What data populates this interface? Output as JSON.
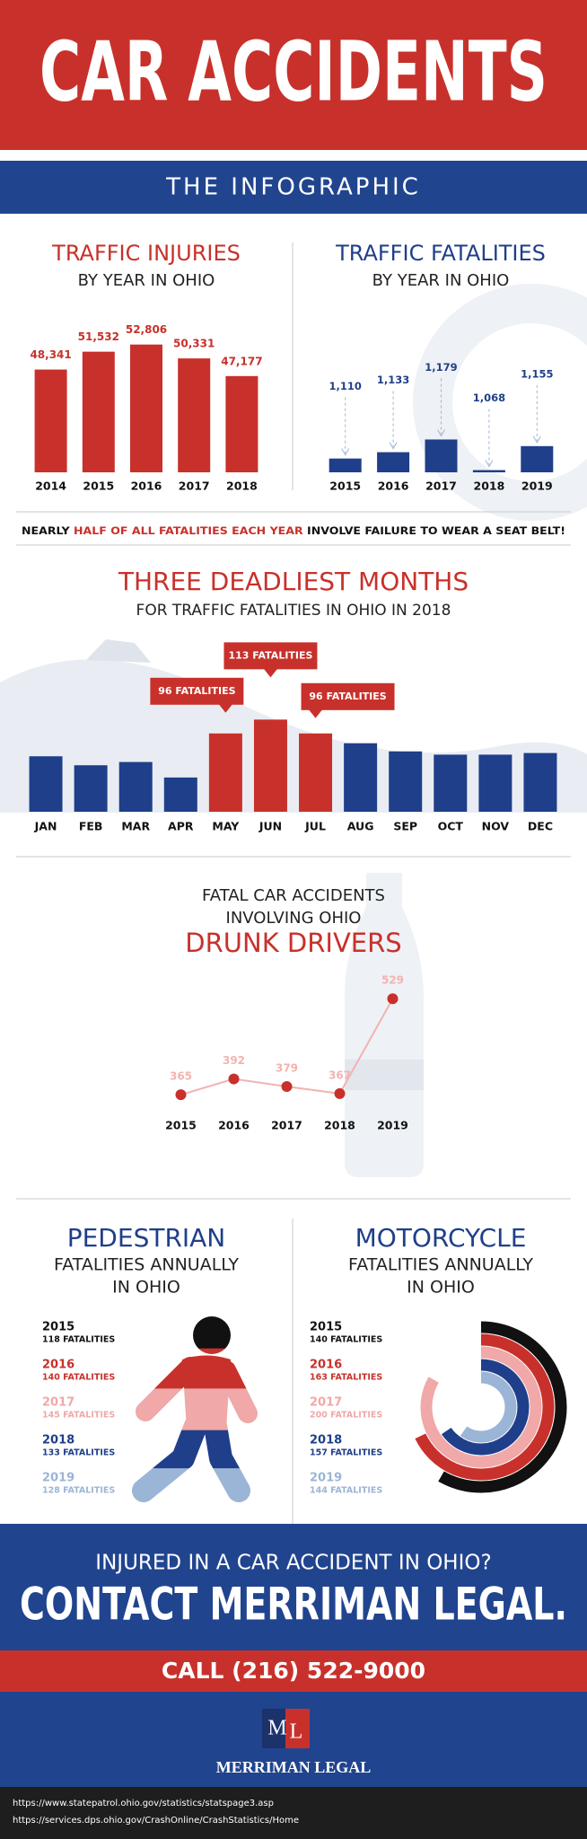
{
  "header": {
    "title": "CAR ACCIDENTS",
    "subtitle": "THE INFOGRAPHIC"
  },
  "chart_data": [
    {
      "type": "bar",
      "title": "TRAFFIC INJURIES",
      "subtitle": "BY YEAR IN OHIO",
      "categories": [
        "2014",
        "2015",
        "2016",
        "2017",
        "2018"
      ],
      "values": [
        48341,
        51532,
        52806,
        50331,
        47177
      ],
      "value_labels": [
        "48,341",
        "51,532",
        "52,806",
        "50,331",
        "47,177"
      ],
      "color": "#c8312b",
      "ylim": [
        30000,
        55000
      ]
    },
    {
      "type": "bar",
      "title": "TRAFFIC FATALITIES",
      "subtitle": "BY YEAR IN OHIO",
      "categories": [
        "2015",
        "2016",
        "2017",
        "2018",
        "2019"
      ],
      "values": [
        1110,
        1133,
        1179,
        1068,
        1155
      ],
      "value_labels": [
        "1,110",
        "1,133",
        "1,179",
        "1,068",
        "1,155"
      ],
      "color": "#1f3f8a",
      "ylim": [
        1060,
        1200
      ]
    },
    {
      "type": "bar",
      "title": "THREE DEADLIEST MONTHS",
      "subtitle": "FOR TRAFFIC FATALITIES IN OHIO IN 2018",
      "categories": [
        "JAN",
        "FEB",
        "MAR",
        "APR",
        "MAY",
        "JUN",
        "JUL",
        "AUG",
        "SEP",
        "OCT",
        "NOV",
        "DEC"
      ],
      "values": [
        68,
        57,
        61,
        42,
        96,
        113,
        96,
        84,
        74,
        70,
        70,
        72
      ],
      "value_labels": [
        null,
        null,
        null,
        null,
        "96 FATALITIES",
        "113 FATALITIES",
        "96 FATALITIES",
        null,
        null,
        null,
        null,
        null
      ],
      "colors": [
        "#1f3f8a",
        "#1f3f8a",
        "#1f3f8a",
        "#1f3f8a",
        "#c8312b",
        "#c8312b",
        "#c8312b",
        "#1f3f8a",
        "#1f3f8a",
        "#1f3f8a",
        "#1f3f8a",
        "#1f3f8a"
      ],
      "ylim": [
        0,
        120
      ]
    },
    {
      "type": "line",
      "title_lines": [
        "FATAL CAR ACCIDENTS",
        "INVOLVING OHIO"
      ],
      "title": "DRUNK DRIVERS",
      "categories": [
        "2015",
        "2016",
        "2017",
        "2018",
        "2019"
      ],
      "values": [
        365,
        392,
        379,
        367,
        529
      ],
      "color": "#c8312b",
      "line_color": "#f2b3b0",
      "ylim": [
        330,
        560
      ]
    },
    {
      "type": "figure",
      "title": "PEDESTRIAN",
      "subtitle_lines": [
        "FATALITIES ANNUALLY",
        "IN OHIO"
      ],
      "categories": [
        "2015",
        "2016",
        "2017",
        "2018",
        "2019"
      ],
      "values": [
        118,
        140,
        145,
        133,
        128
      ],
      "value_labels": [
        "118 FATALITIES",
        "140 FATALITIES",
        "145 FATALITIES",
        "133 FATALITIES",
        "128 FATALITIES"
      ],
      "colors": [
        "#111111",
        "#c8312b",
        "#f0a8a8",
        "#1f3f8a",
        "#9bb5d6"
      ]
    },
    {
      "type": "radial",
      "title": "MOTORCYCLE",
      "subtitle_lines": [
        "FATALITIES ANNUALLY",
        "IN OHIO"
      ],
      "categories": [
        "2015",
        "2016",
        "2017",
        "2018",
        "2019"
      ],
      "values": [
        140,
        163,
        200,
        157,
        144
      ],
      "value_labels": [
        "140 FATALITIES",
        "163 FATALITIES",
        "200 FATALITIES",
        "157 FATALITIES",
        "144 FATALITIES"
      ],
      "colors": [
        "#111111",
        "#c8312b",
        "#f0a8a8",
        "#1f3f8a",
        "#9bb5d6"
      ]
    }
  ],
  "note": {
    "parts": [
      "NEARLY",
      "HALF OF ALL FATALITIES EACH YEAR",
      "INVOLVE FAILURE TO WEAR A SEAT BELT!"
    ]
  },
  "cta": {
    "question": "INJURED IN A CAR ACCIDENT IN OHIO?",
    "headline": "CONTACT MERRIMAN LEGAL.",
    "phone": "CALL (216) 522-9000"
  },
  "logo": {
    "initials": [
      "M",
      "L"
    ],
    "name": "MERRIMAN LEGAL"
  },
  "sources": [
    "https://www.statepatrol.ohio.gov/statistics/statspage3.asp",
    "https://services.dps.ohio.gov/CrashOnline/CrashStatistics/Home"
  ]
}
